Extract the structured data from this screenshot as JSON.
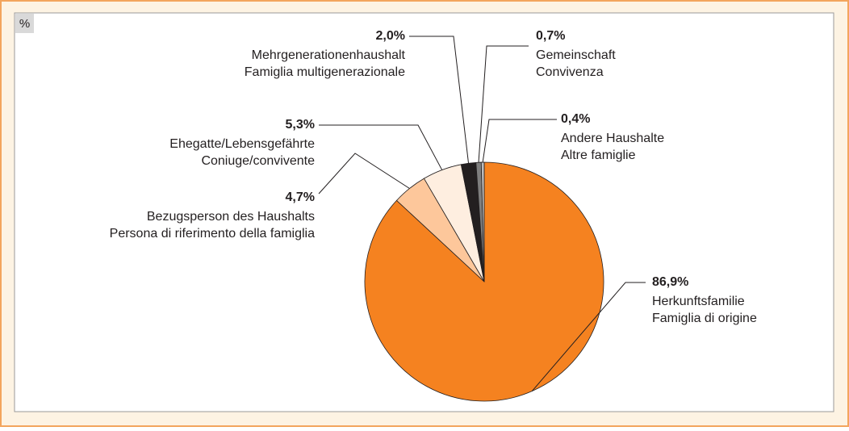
{
  "chart_data": {
    "type": "pie",
    "unit_label": "%",
    "categories": [
      [
        "Herkunftsfamilie",
        "Famiglia di origine"
      ],
      [
        "Bezugsperson des Haushalts",
        "Persona di riferimento della famiglia"
      ],
      [
        "Ehegatte/Lebensgefährte",
        "Coniuge/convivente"
      ],
      [
        "Mehrgenerationenhaushalt",
        "Famiglia multigenerazionale"
      ],
      [
        "Gemeinschaft",
        "Convivenza"
      ],
      [
        "Andere Haushalte",
        "Altre famiglie"
      ]
    ],
    "values": [
      86.9,
      4.7,
      5.3,
      2.0,
      0.7,
      0.4
    ],
    "value_labels": [
      "86,9%",
      "4,7%",
      "5,3%",
      "2,0%",
      "0,7%",
      "0,4%"
    ],
    "colors": [
      "#f58220",
      "#fdc79b",
      "#feeee0",
      "#231f20",
      "#7f7f7f",
      "#bdbdbd"
    ]
  }
}
